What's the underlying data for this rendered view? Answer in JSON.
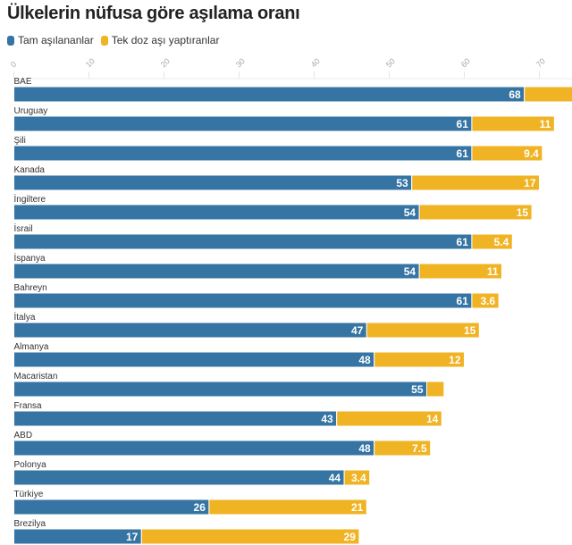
{
  "chart_data": {
    "type": "bar",
    "orientation": "horizontal",
    "stacked": true,
    "title": "Ülkelerin nüfusa göre aşılama oranı",
    "xlim": [
      0,
      75
    ],
    "ticks": [
      0,
      10,
      20,
      30,
      40,
      50,
      60,
      70
    ],
    "grid": true,
    "legend_position": "top-left",
    "categories": [
      "BAE",
      "Uruguay",
      "Şili",
      "Kanada",
      "İngiltere",
      "İsrail",
      "İspanya",
      "Bahreyn",
      "İtalya",
      "Almanya",
      "Macaristan",
      "Fransa",
      "ABD",
      "Polonya",
      "Türkiye",
      "Brezilya"
    ],
    "series": [
      {
        "name": "Tam aşılananlar",
        "color": "#3574a3",
        "values": [
          68,
          61,
          61,
          53,
          54,
          61,
          54,
          61,
          47,
          48,
          55,
          43,
          48,
          44,
          26,
          17
        ],
        "labels": [
          "68",
          "61",
          "61",
          "53",
          "54",
          "61",
          "54",
          "61",
          "47",
          "48",
          "55",
          "43",
          "48",
          "44",
          "26",
          "17"
        ]
      },
      {
        "name": "Tek doz aşı yaptıranlar",
        "color": "#f0b323",
        "values": [
          9,
          11,
          9.4,
          17,
          15,
          5.4,
          11,
          3.6,
          15,
          12,
          2.3,
          14,
          7.5,
          3.4,
          21,
          29
        ],
        "labels": [
          "",
          "11",
          "9.4",
          "17",
          "15",
          "5.4",
          "11",
          "3.6",
          "15",
          "12",
          "",
          "14",
          "7.5",
          "3.4",
          "21",
          "29"
        ]
      }
    ]
  }
}
